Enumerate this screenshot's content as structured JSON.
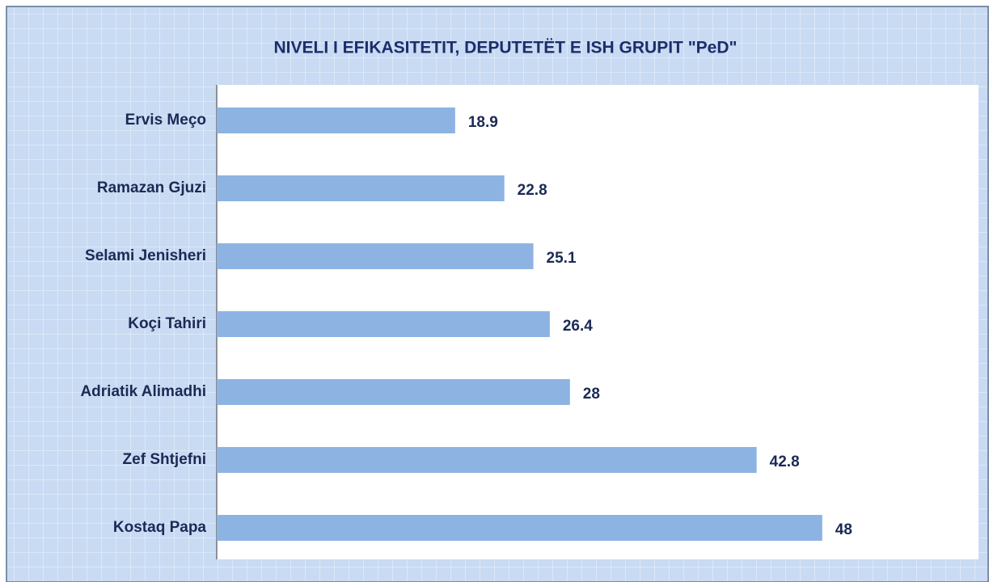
{
  "chart_data": {
    "type": "bar",
    "orientation": "horizontal",
    "title": "NIVELI I EFIKASITETIT, DEPUTETËT E ISH GRUPIT \"PeD\"",
    "categories": [
      "Ervis Meço",
      "Ramazan Gjuzi",
      "Selami Jenisheri",
      "Koçi Tahiri",
      "Adriatik Alimadhi",
      "Zef Shtjefni",
      "Kostaq Papa"
    ],
    "values": [
      18.9,
      22.8,
      25.1,
      26.4,
      28,
      42.8,
      48
    ],
    "color": "#8db3e2",
    "xlim": [
      0,
      60
    ]
  }
}
